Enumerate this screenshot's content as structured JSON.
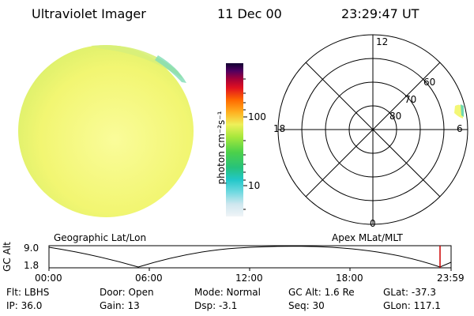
{
  "header": {
    "title": "Ultraviolet Imager",
    "date": "11 Dec 00",
    "time": "23:29:47 UT"
  },
  "colorbar": {
    "unit_label": "photon cm⁻²s⁻¹",
    "tick_100": "100",
    "tick_10": "10"
  },
  "polar": {
    "label_12": "12",
    "label_18": "18",
    "label_6": "6",
    "label_0": "0",
    "lat_60": "60",
    "lat_70": "70",
    "lat_80": "80"
  },
  "panels": {
    "left_caption": "Geographic Lat/Lon",
    "right_caption": "Apex MLat/MLT"
  },
  "altitude_plot": {
    "ylabel": "GC Alt",
    "ytick_top": "9.0",
    "ytick_bottom": "1.8",
    "xticks": [
      "00:00",
      "06:00",
      "12:00",
      "18:00",
      "23:59"
    ]
  },
  "status": {
    "flt": "Flt: LBHS",
    "ip": "IP: 36.0",
    "door": "Door: Open",
    "gain": "Gain: 13",
    "mode": "Mode: Normal",
    "dsp": "Dsp:    -3.1",
    "gcalt": "GC Alt: 1.6 Re",
    "seq": "Seq: 30",
    "glat": "GLat: -37.3",
    "glon": "GLon: 117.1"
  },
  "colors": {
    "disk": "#f3f776",
    "disk_edge": "#c9ef6f",
    "polar_grid": "#000000",
    "marker": "#cc0000"
  }
}
